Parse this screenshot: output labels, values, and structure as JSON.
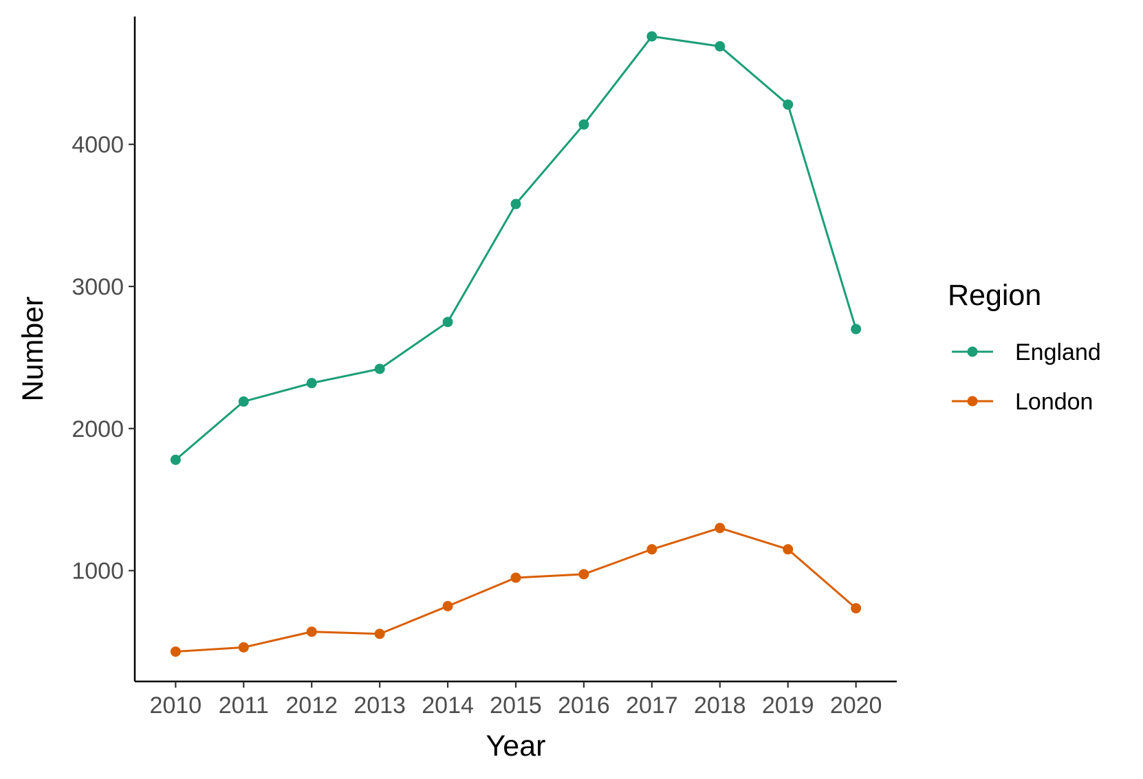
{
  "chart_data": {
    "type": "line",
    "title": "",
    "xlabel": "Year",
    "ylabel": "Number",
    "x": [
      2010,
      2011,
      2012,
      2013,
      2014,
      2015,
      2016,
      2017,
      2018,
      2019,
      2020
    ],
    "x_tick_labels": [
      "2010",
      "2011",
      "2012",
      "2013",
      "2014",
      "2015",
      "2016",
      "2017",
      "2018",
      "2019",
      "2020"
    ],
    "y_ticks": [
      1000,
      2000,
      3000,
      4000
    ],
    "y_tick_labels": [
      "1000",
      "2000",
      "3000",
      "4000"
    ],
    "xlim": [
      2009.4,
      2020.6
    ],
    "ylim": [
      220,
      4900
    ],
    "grid": false,
    "legend": {
      "title": "Region",
      "position": "right"
    },
    "series": [
      {
        "name": "England",
        "color": "#1b9e77",
        "values": [
          1780,
          2190,
          2320,
          2420,
          2750,
          3580,
          4140,
          4760,
          4690,
          4280,
          2700
        ]
      },
      {
        "name": "London",
        "color": "#d95f02",
        "values": [
          430,
          460,
          570,
          555,
          750,
          950,
          975,
          1150,
          1300,
          1150,
          735
        ]
      }
    ]
  }
}
